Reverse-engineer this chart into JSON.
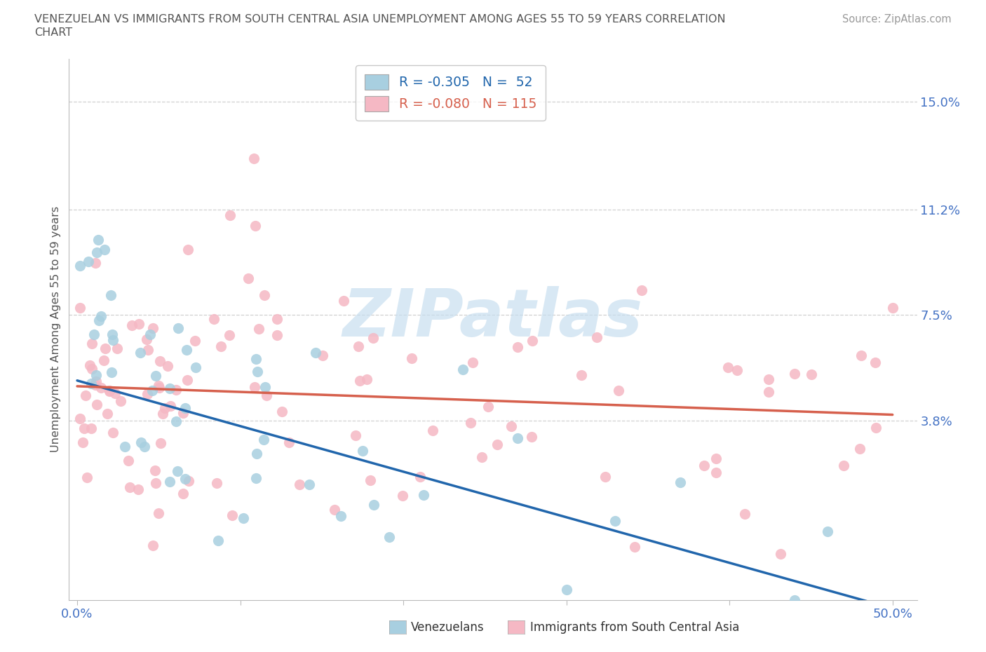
{
  "title_line1": "VENEZUELAN VS IMMIGRANTS FROM SOUTH CENTRAL ASIA UNEMPLOYMENT AMONG AGES 55 TO 59 YEARS CORRELATION",
  "title_line2": "CHART",
  "source": "Source: ZipAtlas.com",
  "ylabel": "Unemployment Among Ages 55 to 59 years",
  "xlim": [
    -0.005,
    0.515
  ],
  "ylim": [
    -0.025,
    0.165
  ],
  "ytick_positions": [
    0.038,
    0.075,
    0.112,
    0.15
  ],
  "ytick_labels": [
    "3.8%",
    "7.5%",
    "11.2%",
    "15.0%"
  ],
  "xtick_positions": [
    0.0,
    0.1,
    0.2,
    0.3,
    0.4,
    0.5
  ],
  "xtick_labels": [
    "0.0%",
    "",
    "",
    "",
    "",
    "50.0%"
  ],
  "legend_r1": "R = -0.305",
  "legend_n1": "N =  52",
  "legend_r2": "R = -0.080",
  "legend_n2": "N = 115",
  "color_venezuelan": "#a8cfe0",
  "color_asia": "#f5b8c4",
  "color_trendline_venezuelan": "#2166ac",
  "color_trendline_asia": "#d6604d",
  "watermark_color": "#c8dff0",
  "background_color": "#ffffff",
  "grid_color": "#d0d0d0",
  "tick_color": "#4472c4",
  "label_color": "#555555",
  "trendline_ven_x0": 0.0,
  "trendline_ven_y0": 0.052,
  "trendline_ven_x1": 0.5,
  "trendline_ven_y1": -0.028,
  "trendline_asia_x0": 0.0,
  "trendline_asia_y0": 0.05,
  "trendline_asia_x1": 0.5,
  "trendline_asia_y1": 0.04
}
